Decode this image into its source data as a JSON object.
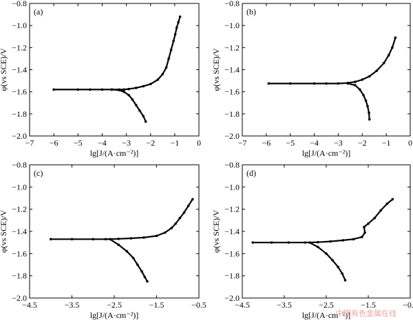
{
  "watermark": "中国有色金属在线",
  "chart_data": [
    {
      "type": "line",
      "panel_label": "(a)",
      "xlabel": "lg[J/(A·cm⁻²)]",
      "ylabel": "φ(vs SCE)/V",
      "xlim": [
        -7,
        0
      ],
      "ylim": [
        -2.0,
        -0.8
      ],
      "xticks": [
        -7,
        -6,
        -5,
        -4,
        -3,
        -2,
        -1,
        0
      ],
      "yticks": [
        -2.0,
        -1.8,
        -1.6,
        -1.4,
        -1.2,
        -1.0,
        -0.8
      ],
      "xtick_labels": [
        "−7",
        "−6",
        "−5",
        "−4",
        "−3",
        "−2",
        "−1",
        "0"
      ],
      "ytick_labels": [
        "−2.0",
        "−1.8",
        "−1.6",
        "−1.4",
        "−1.2",
        "−1.0",
        "−0.8"
      ],
      "series": [
        {
          "x": [
            -6.0,
            -5.0,
            -4.5,
            -4.0,
            -3.6,
            -3.3,
            -3.1,
            -2.9,
            -2.6,
            -2.3,
            -2.0,
            -1.7,
            -1.5,
            -1.35,
            -1.25,
            -1.15,
            -1.05,
            -0.98,
            -0.92,
            -0.85,
            -0.78
          ],
          "y": [
            -1.58,
            -1.58,
            -1.58,
            -1.58,
            -1.58,
            -1.58,
            -1.58,
            -1.575,
            -1.565,
            -1.55,
            -1.53,
            -1.49,
            -1.44,
            -1.38,
            -1.3,
            -1.22,
            -1.14,
            -1.08,
            -1.02,
            -0.97,
            -0.92
          ]
        },
        {
          "x": [
            -3.6,
            -3.3,
            -3.1,
            -2.9,
            -2.75,
            -2.6,
            -2.45,
            -2.3,
            -2.2
          ],
          "y": [
            -1.58,
            -1.585,
            -1.6,
            -1.63,
            -1.67,
            -1.72,
            -1.77,
            -1.82,
            -1.87
          ]
        }
      ]
    },
    {
      "type": "line",
      "panel_label": "(b)",
      "xlabel": "lg[J/(A·cm⁻²)]",
      "ylabel": "φ(vs SCE)/V",
      "xlim": [
        -7,
        0
      ],
      "ylim": [
        -2.0,
        -0.8
      ],
      "xticks": [
        -7,
        -6,
        -5,
        -4,
        -3,
        -2,
        -1,
        0
      ],
      "yticks": [
        -2.0,
        -1.8,
        -1.6,
        -1.4,
        -1.2,
        -1.0,
        -0.8
      ],
      "xtick_labels": [
        "−7",
        "−6",
        "−5",
        "−4",
        "−3",
        "−2",
        "−1",
        "0"
      ],
      "ytick_labels": [
        "−2.0",
        "−1.8",
        "−1.6",
        "−1.4",
        "−1.2",
        "−1.0",
        "−0.8"
      ],
      "series": [
        {
          "x": [
            -5.9,
            -5.0,
            -4.0,
            -3.5,
            -3.0,
            -2.6,
            -2.3,
            -2.0,
            -1.7,
            -1.4,
            -1.1,
            -0.9,
            -0.75,
            -0.62
          ],
          "y": [
            -1.525,
            -1.525,
            -1.525,
            -1.525,
            -1.525,
            -1.52,
            -1.51,
            -1.49,
            -1.46,
            -1.41,
            -1.34,
            -1.27,
            -1.2,
            -1.11
          ]
        },
        {
          "x": [
            -2.6,
            -2.3,
            -2.1,
            -1.95,
            -1.85,
            -1.78,
            -1.72,
            -1.7
          ],
          "y": [
            -1.525,
            -1.54,
            -1.58,
            -1.63,
            -1.68,
            -1.73,
            -1.79,
            -1.85
          ]
        }
      ]
    },
    {
      "type": "line",
      "panel_label": "(c)",
      "xlabel": "lg[J/(A·cm⁻²)]",
      "ylabel": "φ(vs SCE)/V",
      "xlim": [
        -4.5,
        -0.5
      ],
      "ylim": [
        -2.0,
        -0.8
      ],
      "xticks": [
        -4.5,
        -3.5,
        -2.5,
        -1.5,
        -0.5
      ],
      "yticks": [
        -2.0,
        -1.8,
        -1.6,
        -1.4,
        -1.2,
        -1.0,
        -0.8
      ],
      "xtick_labels": [
        "−4.5",
        "−3.5",
        "−2.5",
        "−1.5",
        "−0.5"
      ],
      "ytick_labels": [
        "−2.0",
        "−1.8",
        "−1.6",
        "−1.4",
        "−1.2",
        "−1.0",
        "−0.8"
      ],
      "series": [
        {
          "x": [
            -4.0,
            -3.5,
            -3.0,
            -2.7,
            -2.4,
            -2.1,
            -1.8,
            -1.5,
            -1.3,
            -1.15,
            -1.05,
            -0.95,
            -0.85,
            -0.75,
            -0.65
          ],
          "y": [
            -1.47,
            -1.47,
            -1.47,
            -1.47,
            -1.467,
            -1.462,
            -1.455,
            -1.44,
            -1.41,
            -1.37,
            -1.33,
            -1.28,
            -1.23,
            -1.17,
            -1.11
          ]
        },
        {
          "x": [
            -2.6,
            -2.4,
            -2.2,
            -2.05,
            -1.95,
            -1.85,
            -1.78,
            -1.72
          ],
          "y": [
            -1.47,
            -1.52,
            -1.58,
            -1.64,
            -1.7,
            -1.76,
            -1.81,
            -1.85
          ]
        }
      ]
    },
    {
      "type": "line",
      "panel_label": "(d)",
      "xlabel": "lg[J/(A·cm⁻²)]",
      "ylabel": "φ(vs SCE)/V",
      "xlim": [
        -4.5,
        -0.5
      ],
      "ylim": [
        -2.0,
        -0.8
      ],
      "xticks": [
        -4.5,
        -3.5,
        -2.5,
        -1.5,
        -0.5
      ],
      "yticks": [
        -2.0,
        -1.8,
        -1.6,
        -1.4,
        -1.2,
        -1.0,
        -0.8
      ],
      "xtick_labels": [
        "−4.5",
        "−3.5",
        "−2.5",
        "−1.5",
        "−0.5"
      ],
      "ytick_labels": [
        "−2.0",
        "−1.8",
        "−1.6",
        "−1.4",
        "−1.2",
        "−1.0",
        "−0.8"
      ],
      "series": [
        {
          "x": [
            -4.25,
            -3.8,
            -3.4,
            -3.0,
            -2.7,
            -2.4,
            -2.1,
            -1.85,
            -1.65,
            -1.58,
            -1.6,
            -1.5,
            -1.35,
            -1.2,
            -1.05,
            -0.92
          ],
          "y": [
            -1.5,
            -1.5,
            -1.5,
            -1.5,
            -1.497,
            -1.49,
            -1.48,
            -1.47,
            -1.45,
            -1.41,
            -1.36,
            -1.33,
            -1.28,
            -1.21,
            -1.15,
            -1.11
          ]
        },
        {
          "x": [
            -2.9,
            -2.7,
            -2.5,
            -2.35,
            -2.22,
            -2.12,
            -2.05
          ],
          "y": [
            -1.5,
            -1.54,
            -1.6,
            -1.66,
            -1.72,
            -1.78,
            -1.84
          ]
        }
      ]
    }
  ]
}
